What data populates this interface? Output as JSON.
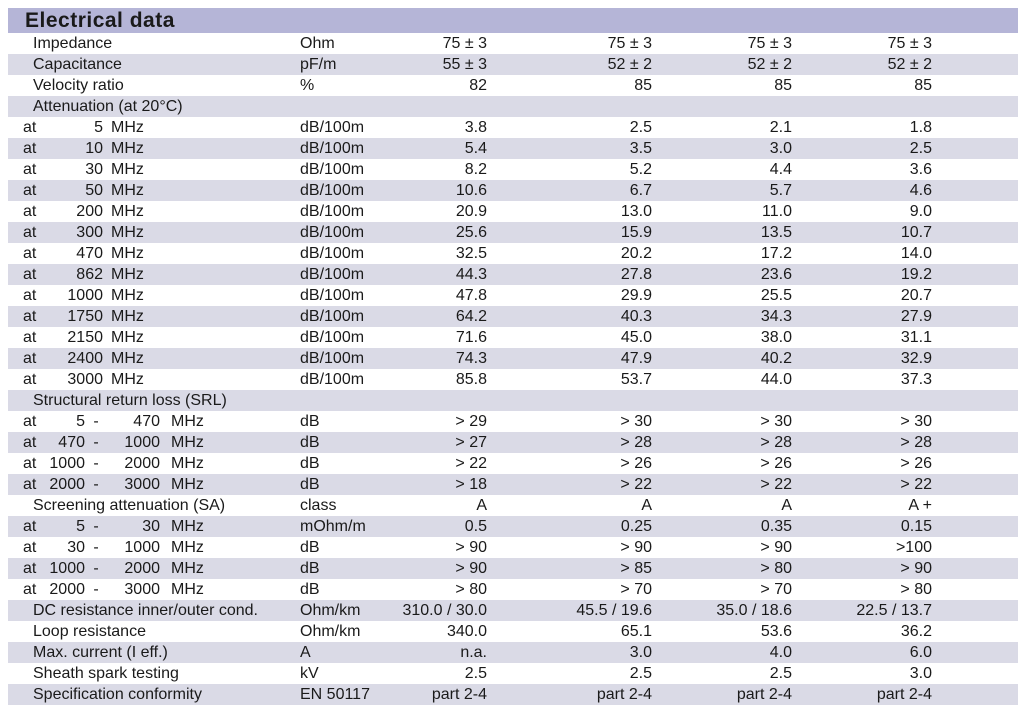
{
  "title": "Electrical data",
  "colors": {
    "header_bg": "#b5b5d7",
    "stripe_bg": "#dadae6",
    "text": "#1a1a1a"
  },
  "table": {
    "freq_prefix": "at",
    "freq_unit": "MHz",
    "range_dash": "-",
    "columns": [
      "parameter",
      "unit",
      "value-1",
      "value-2",
      "value-3",
      "value-4"
    ],
    "rows": [
      {
        "type": "param",
        "label": "Impedance",
        "unit": "Ohm",
        "values": [
          "75 ± 3",
          "75 ± 3",
          "75 ± 3",
          "75 ± 3"
        ]
      },
      {
        "type": "param",
        "label": "Capacitance",
        "unit": "pF/m",
        "values": [
          "55 ± 3",
          "52 ± 2",
          "52 ± 2",
          "52 ± 2"
        ]
      },
      {
        "type": "param",
        "label": "Velocity ratio",
        "unit": "%",
        "values": [
          "82",
          "85",
          "85",
          "85"
        ]
      },
      {
        "type": "section",
        "label": "Attenuation (at 20°C)"
      },
      {
        "type": "freq",
        "f1": "5",
        "unit": "dB/100m",
        "values": [
          "3.8",
          "2.5",
          "2.1",
          "1.8"
        ]
      },
      {
        "type": "freq",
        "f1": "10",
        "unit": "dB/100m",
        "values": [
          "5.4",
          "3.5",
          "3.0",
          "2.5"
        ]
      },
      {
        "type": "freq",
        "f1": "30",
        "unit": "dB/100m",
        "values": [
          "8.2",
          "5.2",
          "4.4",
          "3.6"
        ]
      },
      {
        "type": "freq",
        "f1": "50",
        "unit": "dB/100m",
        "values": [
          "10.6",
          "6.7",
          "5.7",
          "4.6"
        ]
      },
      {
        "type": "freq",
        "f1": "200",
        "unit": "dB/100m",
        "values": [
          "20.9",
          "13.0",
          "11.0",
          "9.0"
        ]
      },
      {
        "type": "freq",
        "f1": "300",
        "unit": "dB/100m",
        "values": [
          "25.6",
          "15.9",
          "13.5",
          "10.7"
        ]
      },
      {
        "type": "freq",
        "f1": "470",
        "unit": "dB/100m",
        "values": [
          "32.5",
          "20.2",
          "17.2",
          "14.0"
        ]
      },
      {
        "type": "freq",
        "f1": "862",
        "unit": "dB/100m",
        "values": [
          "44.3",
          "27.8",
          "23.6",
          "19.2"
        ]
      },
      {
        "type": "freq",
        "f1": "1000",
        "unit": "dB/100m",
        "values": [
          "47.8",
          "29.9",
          "25.5",
          "20.7"
        ]
      },
      {
        "type": "freq",
        "f1": "1750",
        "unit": "dB/100m",
        "values": [
          "64.2",
          "40.3",
          "34.3",
          "27.9"
        ]
      },
      {
        "type": "freq",
        "f1": "2150",
        "unit": "dB/100m",
        "values": [
          "71.6",
          "45.0",
          "38.0",
          "31.1"
        ]
      },
      {
        "type": "freq",
        "f1": "2400",
        "unit": "dB/100m",
        "values": [
          "74.3",
          "47.9",
          "40.2",
          "32.9"
        ]
      },
      {
        "type": "freq",
        "f1": "3000",
        "unit": "dB/100m",
        "values": [
          "85.8",
          "53.7",
          "44.0",
          "37.3"
        ]
      },
      {
        "type": "section",
        "label": "Structural return loss (SRL)"
      },
      {
        "type": "range",
        "f1": "5",
        "f2": "470",
        "unit": "dB",
        "values": [
          "> 29",
          "> 30",
          "> 30",
          "> 30"
        ]
      },
      {
        "type": "range",
        "f1": "470",
        "f2": "1000",
        "unit": "dB",
        "values": [
          "> 27",
          "> 28",
          "> 28",
          "> 28"
        ]
      },
      {
        "type": "range",
        "f1": "1000",
        "f2": "2000",
        "unit": "dB",
        "values": [
          "> 22",
          "> 26",
          "> 26",
          "> 26"
        ]
      },
      {
        "type": "range",
        "f1": "2000",
        "f2": "3000",
        "unit": "dB",
        "values": [
          "> 18",
          "> 22",
          "> 22",
          "> 22"
        ]
      },
      {
        "type": "param",
        "label": "Screening attenuation (SA)",
        "unit": "class",
        "values": [
          "A",
          "A",
          "A",
          "A +"
        ]
      },
      {
        "type": "range",
        "f1": "5",
        "f2": "30",
        "unit": "mOhm/m",
        "values": [
          "0.5",
          "0.25",
          "0.35",
          "0.15"
        ]
      },
      {
        "type": "range",
        "f1": "30",
        "f2": "1000",
        "unit": "dB",
        "values": [
          "> 90",
          "> 90",
          "> 90",
          ">100"
        ]
      },
      {
        "type": "range",
        "f1": "1000",
        "f2": "2000",
        "unit": "dB",
        "values": [
          "> 90",
          "> 85",
          "> 80",
          "> 90"
        ]
      },
      {
        "type": "range",
        "f1": "2000",
        "f2": "3000",
        "unit": "dB",
        "values": [
          "> 80",
          "> 70",
          "> 70",
          "> 80"
        ]
      },
      {
        "type": "param",
        "label": "DC resistance inner/outer cond.",
        "unit": "Ohm/km",
        "values": [
          "310.0 / 30.0",
          "45.5 / 19.6",
          "35.0 / 18.6",
          "22.5 / 13.7"
        ]
      },
      {
        "type": "param",
        "label": "Loop resistance",
        "unit": "Ohm/km",
        "values": [
          "340.0",
          "65.1",
          "53.6",
          "36.2"
        ]
      },
      {
        "type": "param",
        "label": "Max. current (I eff.)",
        "unit": "A",
        "values": [
          "n.a.",
          "3.0",
          "4.0",
          "6.0"
        ]
      },
      {
        "type": "param",
        "label": "Sheath spark testing",
        "unit": "kV",
        "values": [
          "2.5",
          "2.5",
          "2.5",
          "3.0"
        ]
      },
      {
        "type": "param",
        "label": "Specification conformity",
        "unit": "EN 50117",
        "values": [
          "part 2-4",
          "part 2-4",
          "part 2-4",
          "part 2-4"
        ]
      }
    ]
  }
}
